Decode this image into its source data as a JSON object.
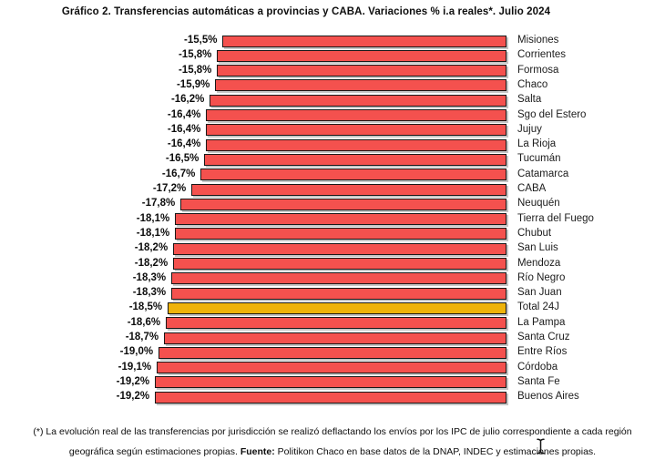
{
  "title": "Gráfico 2. Transferencias automáticas a provincias y CABA. Variaciones % i.a reales*. Julio 2024",
  "chart_data": {
    "type": "bar",
    "orientation": "horizontal",
    "title": "Gráfico 2. Transferencias automáticas a provincias y CABA. Variaciones % i.a reales*. Julio 2024",
    "unit": "%",
    "xlim": [
      -20,
      0
    ],
    "grid": false,
    "legend": "none",
    "value_anchor": "right (zero at right edge, bars extend left)",
    "categories": [
      "Misiones",
      "Corrientes",
      "Formosa",
      "Chaco",
      "Salta",
      "Sgo del Estero",
      "Jujuy",
      "La Rioja",
      "Tucumán",
      "Catamarca",
      "CABA",
      "Neuquén",
      "Tierra del Fuego",
      "Chubut",
      "San Luis",
      "Mendoza",
      "Río Negro",
      "San Juan",
      "Total 24J",
      "La Pampa",
      "Santa Cruz",
      "Entre Ríos",
      "Córdoba",
      "Santa Fe",
      "Buenos Aires"
    ],
    "values": [
      -15.5,
      -15.8,
      -15.8,
      -15.9,
      -16.2,
      -16.4,
      -16.4,
      -16.4,
      -16.5,
      -16.7,
      -17.2,
      -17.8,
      -18.1,
      -18.1,
      -18.2,
      -18.2,
      -18.3,
      -18.3,
      -18.5,
      -18.6,
      -18.7,
      -19.0,
      -19.1,
      -19.2,
      -19.2
    ],
    "value_labels": [
      "-15,5%",
      "-15,8%",
      "-15,8%",
      "-15,9%",
      "-16,2%",
      "-16,4%",
      "-16,4%",
      "-16,4%",
      "-16,5%",
      "-16,7%",
      "-17,2%",
      "-17,8%",
      "-18,1%",
      "-18,1%",
      "-18,2%",
      "-18,2%",
      "-18,3%",
      "-18,3%",
      "-18,5%",
      "-18,6%",
      "-18,7%",
      "-19,0%",
      "-19,1%",
      "-19,2%",
      "-19,2%"
    ],
    "bar_color": "#f4514e",
    "bar_border_color": "#181818",
    "highlight_category": "Total 24J",
    "highlight_color": "#efb30a"
  },
  "footnote": {
    "line1": "(*) La evolución real de las transferencias por jurisdicción se realizó deflactando los envíos por los IPC de julio correspondiente a cada región",
    "line2_before": "geográfica según estimaciones propias. ",
    "fuente_label": "Fuente:",
    "line2_after": " Politikon Chaco en base datos de la DNAP, INDEC y estimaciones propias."
  },
  "cursor": {
    "type": "i-beam"
  }
}
